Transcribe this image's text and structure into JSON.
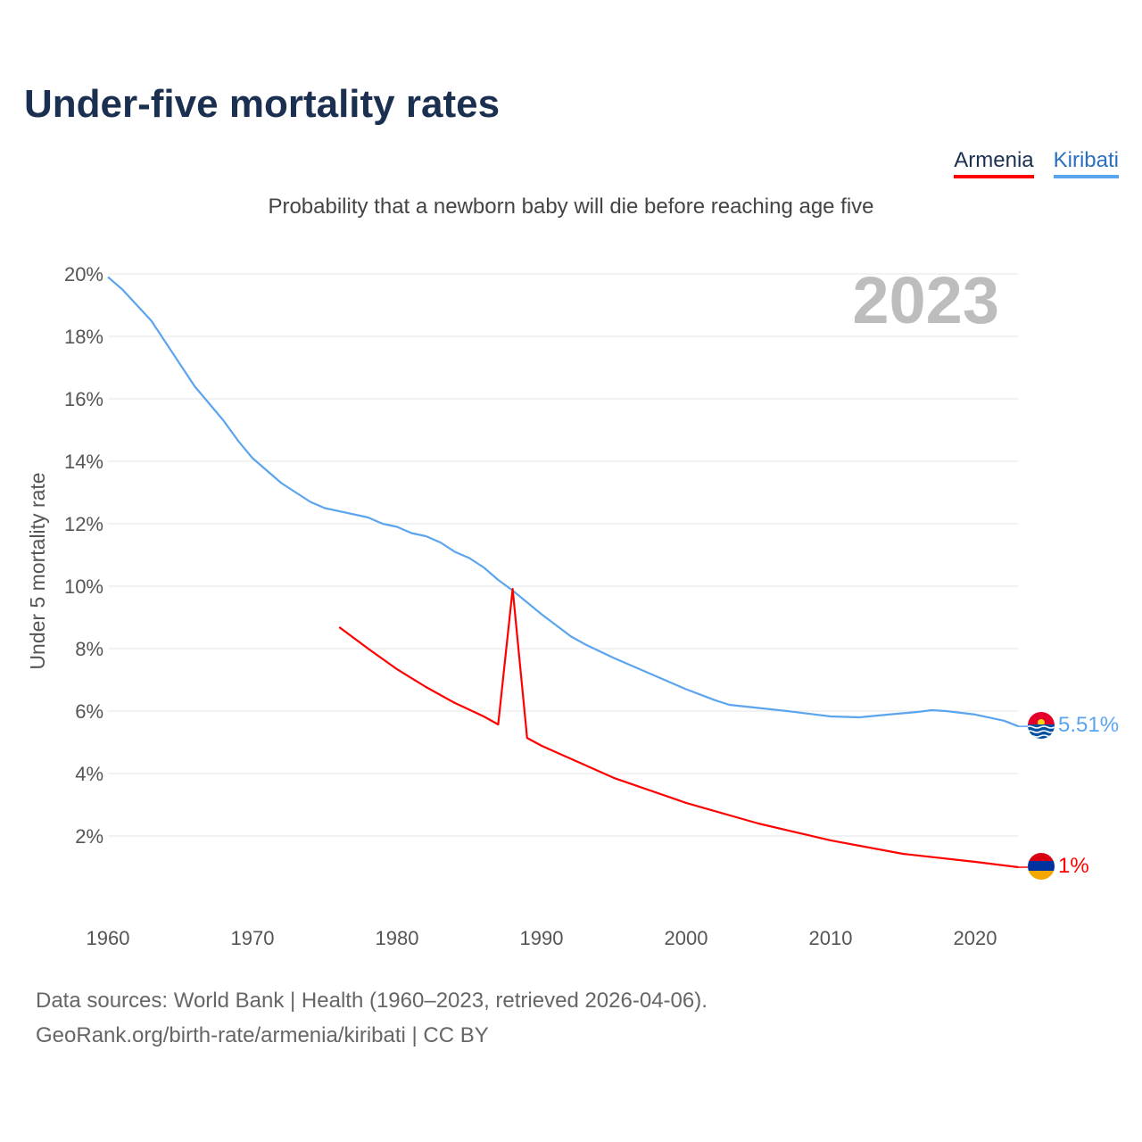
{
  "title": "Under-five mortality rates",
  "subtitle": "Probability that a newborn baby will die before reaching age five",
  "legend": [
    {
      "label": "Armenia",
      "color": "#ff0000"
    },
    {
      "label": "Kiribati",
      "color": "#5ba4ee"
    }
  ],
  "year_label": "2023",
  "sources": {
    "line1": "Data sources: World Bank | Health (1960–2023, retrieved 2026-04-06).",
    "line2": "GeoRank.org/birth-rate/armenia/kiribati | CC BY"
  },
  "chart_data": {
    "type": "line",
    "title": "Under-five mortality rates",
    "xlabel": "",
    "ylabel": "Under 5 mortality rate",
    "xlim": [
      1960,
      2023
    ],
    "ylim": [
      0,
      20
    ],
    "x_ticks": [
      1960,
      1970,
      1980,
      1990,
      2000,
      2010,
      2020
    ],
    "y_ticks": [
      2,
      4,
      6,
      8,
      10,
      12,
      14,
      16,
      18,
      20
    ],
    "y_tick_labels": [
      "2%",
      "4%",
      "6%",
      "8%",
      "10%",
      "12%",
      "14%",
      "16%",
      "18%",
      "20%"
    ],
    "grid": true,
    "legend_position": "top-right",
    "series": [
      {
        "name": "Kiribati",
        "color": "#5ba4ee",
        "end_label": "5.51%",
        "points": [
          [
            1960,
            19.9
          ],
          [
            1961,
            19.5
          ],
          [
            1963,
            18.5
          ],
          [
            1965,
            17.1
          ],
          [
            1966,
            16.4
          ],
          [
            1968,
            15.3
          ],
          [
            1969,
            14.66
          ],
          [
            1970,
            14.1
          ],
          [
            1972,
            13.3
          ],
          [
            1974,
            12.7
          ],
          [
            1975,
            12.5
          ],
          [
            1978,
            12.2
          ],
          [
            1979,
            12.0
          ],
          [
            1980,
            11.9
          ],
          [
            1981,
            11.7
          ],
          [
            1982,
            11.6
          ],
          [
            1983,
            11.4
          ],
          [
            1984,
            11.1
          ],
          [
            1985,
            10.9
          ],
          [
            1986,
            10.6
          ],
          [
            1987,
            10.2
          ],
          [
            1988,
            9.86
          ],
          [
            1990,
            9.1
          ],
          [
            1992,
            8.4
          ],
          [
            1993,
            8.14
          ],
          [
            1995,
            7.7
          ],
          [
            1996,
            7.5
          ],
          [
            2000,
            6.7
          ],
          [
            2002,
            6.35
          ],
          [
            2003,
            6.2
          ],
          [
            2005,
            6.1
          ],
          [
            2007,
            6.0
          ],
          [
            2010,
            5.83
          ],
          [
            2012,
            5.8
          ],
          [
            2014,
            5.89
          ],
          [
            2016,
            5.97
          ],
          [
            2017,
            6.03
          ],
          [
            2018,
            6.0
          ],
          [
            2020,
            5.89
          ],
          [
            2022,
            5.69
          ],
          [
            2023,
            5.51
          ]
        ]
      },
      {
        "name": "Armenia",
        "color": "#ff0000",
        "end_label": "1%",
        "points": [
          [
            1976,
            8.69
          ],
          [
            1978,
            8.0
          ],
          [
            1980,
            7.34
          ],
          [
            1982,
            6.77
          ],
          [
            1984,
            6.26
          ],
          [
            1986,
            5.83
          ],
          [
            1987,
            5.57
          ],
          [
            1988,
            9.91
          ],
          [
            1989,
            5.14
          ],
          [
            1990,
            4.89
          ],
          [
            1995,
            3.86
          ],
          [
            2000,
            3.06
          ],
          [
            2005,
            2.4
          ],
          [
            2010,
            1.86
          ],
          [
            2015,
            1.43
          ],
          [
            2020,
            1.17
          ],
          [
            2023,
            1.0
          ]
        ]
      }
    ]
  }
}
